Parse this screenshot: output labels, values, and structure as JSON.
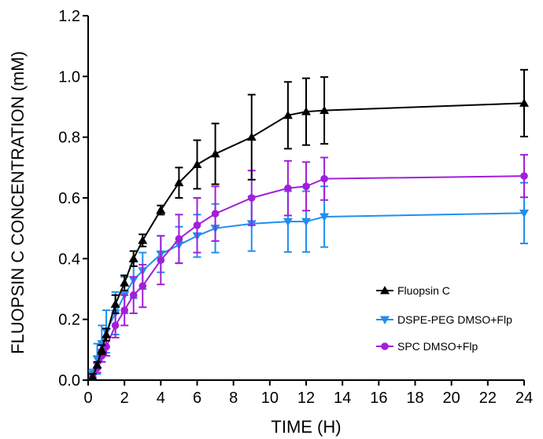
{
  "chart_data": {
    "type": "line",
    "title": "",
    "xlabel": "TIME (H)",
    "ylabel": "FLUOPSIN C CONCENTRATION (mM)",
    "xlim": [
      0,
      24
    ],
    "ylim": [
      0,
      1.2
    ],
    "xticks": [
      "0",
      "2",
      "4",
      "6",
      "8",
      "10",
      "12",
      "14",
      "16",
      "18",
      "20",
      "22",
      "24"
    ],
    "yticks": [
      "0.0",
      "0.2",
      "0.4",
      "0.6",
      "0.8",
      "1.0",
      "1.2"
    ],
    "grid": false,
    "legend_position": "lower-right",
    "series": [
      {
        "name": "Fluopsin C",
        "color": "#000000",
        "marker": "triangle-up",
        "x": [
          0.25,
          0.5,
          0.75,
          1,
          1.5,
          2,
          2.5,
          3,
          4,
          5,
          6,
          7,
          9,
          11,
          12,
          13,
          24
        ],
        "y": [
          0.01,
          0.05,
          0.1,
          0.15,
          0.25,
          0.32,
          0.4,
          0.46,
          0.56,
          0.65,
          0.71,
          0.745,
          0.8,
          0.872,
          0.884,
          0.888,
          0.912
        ],
        "err": [
          0.01,
          0.01,
          0.015,
          0.02,
          0.03,
          0.025,
          0.025,
          0.02,
          0.015,
          0.05,
          0.08,
          0.1,
          0.14,
          0.11,
          0.11,
          0.11,
          0.11
        ]
      },
      {
        "name": "DSPE-PEG DMSO+Flp",
        "color": "#1e8ff0",
        "marker": "triangle-down",
        "x": [
          0.25,
          0.5,
          0.75,
          1,
          1.5,
          2,
          2.5,
          3,
          4,
          5,
          6,
          7,
          9,
          11,
          12,
          13,
          24
        ],
        "y": [
          0.02,
          0.07,
          0.12,
          0.16,
          0.22,
          0.28,
          0.33,
          0.36,
          0.415,
          0.445,
          0.475,
          0.5,
          0.515,
          0.522,
          0.522,
          0.538,
          0.55
        ],
        "err": [
          0.015,
          0.05,
          0.06,
          0.07,
          0.07,
          0.06,
          0.06,
          0.06,
          0.06,
          0.06,
          0.07,
          0.08,
          0.09,
          0.1,
          0.1,
          0.1,
          0.1
        ]
      },
      {
        "name": "SPC DMSO+Flp",
        "color": "#a21fd9",
        "marker": "circle",
        "x": [
          0.25,
          0.5,
          0.75,
          1,
          1.5,
          2,
          2.5,
          3,
          4,
          5,
          6,
          7,
          9,
          11,
          12,
          13,
          24
        ],
        "y": [
          0.01,
          0.04,
          0.08,
          0.11,
          0.18,
          0.23,
          0.28,
          0.31,
          0.395,
          0.465,
          0.51,
          0.548,
          0.6,
          0.632,
          0.638,
          0.663,
          0.672
        ],
        "err": [
          0.01,
          0.015,
          0.02,
          0.03,
          0.04,
          0.05,
          0.06,
          0.07,
          0.08,
          0.08,
          0.09,
          0.09,
          0.09,
          0.09,
          0.08,
          0.07,
          0.07
        ]
      }
    ]
  }
}
